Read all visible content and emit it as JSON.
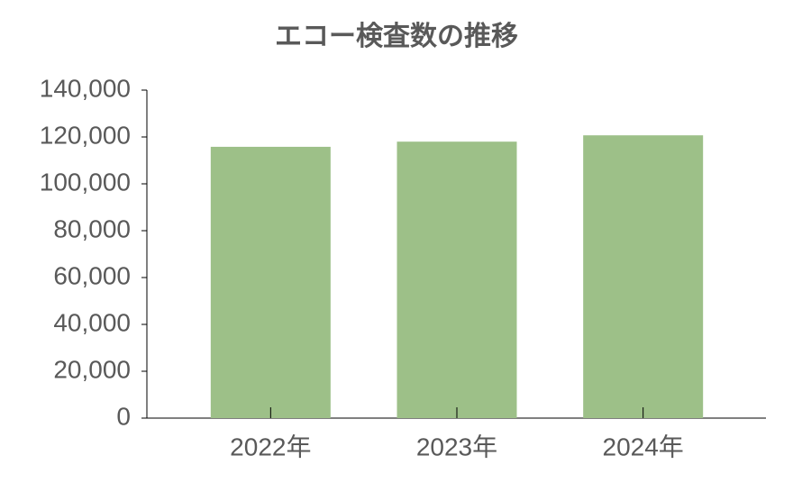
{
  "chart_data": {
    "type": "bar",
    "title": "エコー検査数の推移",
    "categories": [
      "2022年",
      "2023年",
      "2024年"
    ],
    "values": [
      115800,
      118000,
      120700
    ],
    "color": "#9dc088",
    "ylim": [
      0,
      140000
    ],
    "yticks": [
      0,
      {
        "value": 20000,
        "label": "20,000"
      },
      {
        "value": 40000,
        "label": "40,000"
      },
      {
        "value": 60000,
        "label": "60,000"
      },
      {
        "value": 80000,
        "label": "80,000"
      },
      {
        "value": 100000,
        "label": "100,000"
      },
      {
        "value": 120000,
        "label": "120,000"
      },
      {
        "value": 140000,
        "label": "140,000"
      }
    ],
    "grid": false
  }
}
